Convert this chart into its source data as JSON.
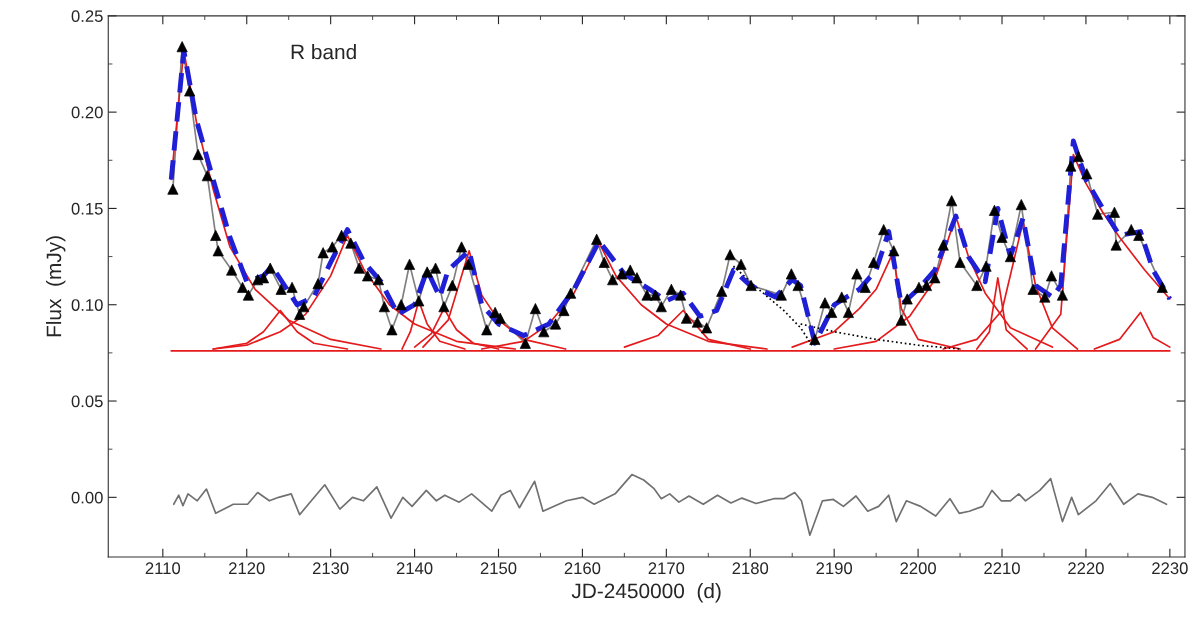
{
  "chart_data": {
    "type": "line",
    "xlabel": "JD-2450000  (d)",
    "ylabel": "Flux  (mJy)",
    "xlim": [
      2103.5,
      2231.8
    ],
    "ylim": [
      -0.031,
      0.25
    ],
    "xticks": [
      2110,
      2120,
      2130,
      2140,
      2150,
      2160,
      2170,
      2180,
      2190,
      2200,
      2210,
      2220,
      2230
    ],
    "yticks": [
      {
        "value": 0,
        "label": "0.00"
      },
      {
        "value": 0.05,
        "label": "0.05"
      },
      {
        "value": 0.1,
        "label": "0.10"
      },
      {
        "value": 0.15,
        "label": "0.15"
      },
      {
        "value": 0.2,
        "label": "0.20"
      },
      {
        "value": 0.25,
        "label": "0.25"
      }
    ],
    "grid": false,
    "legend": false,
    "annotations": [
      "R band"
    ],
    "series": [
      {
        "color": "#808080",
        "line_style": "solid",
        "x": [
          2111.2,
          2112.3,
          2113.2,
          2114.2,
          2115.3,
          2116.3,
          2116.6,
          2118.2,
          2119.5,
          2120.2,
          2121.3,
          2122.0,
          2122.8,
          2124.1,
          2125.4,
          2126.3,
          2126.8,
          2128.5,
          2129.1,
          2130.2,
          2131.3,
          2132.4,
          2133.4,
          2134.4,
          2135.7,
          2136.4,
          2137.3,
          2138.4,
          2139.4,
          2140.5,
          2141.5,
          2142.5,
          2143.5,
          2144.5,
          2145.6,
          2146.4,
          2148.6,
          2149.6,
          2150.2,
          2153.2,
          2154.4,
          2155.4,
          2156.8,
          2157.8,
          2158.6,
          2161.7,
          2162.6,
          2163.6,
          2164.7,
          2165.7,
          2166.5,
          2167.7,
          2168.7,
          2169.4,
          2170.6,
          2171.7,
          2172.4,
          2173.7,
          2174.8,
          2176.6,
          2177.6,
          2178.9,
          2180.1,
          2183.7,
          2184.9,
          2185.7,
          2187.7,
          2188.9,
          2189.7,
          2190.9,
          2191.7,
          2192.7,
          2193.7,
          2194.7,
          2195.9,
          2197.1,
          2198.0,
          2198.7,
          2200.1,
          2201.0,
          2202.0,
          2203.0,
          2204.0,
          2205.0,
          2207.0,
          2208.1,
          2209.1,
          2210.0,
          2211.0,
          2212.3,
          2213.7,
          2215.1,
          2215.9,
          2217.2,
          2218.2,
          2219.1,
          2220.1,
          2221.4,
          2223.4,
          2223.6,
          2225.4,
          2226.3,
          2229.1
        ],
        "values": [
          0.16,
          0.234,
          0.211,
          0.178,
          0.167,
          0.136,
          0.128,
          0.118,
          0.109,
          0.105,
          0.113,
          0.114,
          0.119,
          0.108,
          0.109,
          0.095,
          0.099,
          0.111,
          0.127,
          0.13,
          0.136,
          0.132,
          0.119,
          0.115,
          0.113,
          0.099,
          0.087,
          0.1,
          0.121,
          0.102,
          0.117,
          0.119,
          0.099,
          0.11,
          0.13,
          0.121,
          0.087,
          0.096,
          0.093,
          0.08,
          0.098,
          0.086,
          0.09,
          0.097,
          0.106,
          0.134,
          0.122,
          0.113,
          0.116,
          0.118,
          0.114,
          0.105,
          0.105,
          0.099,
          0.108,
          0.105,
          0.093,
          0.091,
          0.088,
          0.107,
          0.126,
          0.121,
          0.11,
          0.105,
          0.116,
          0.11,
          0.082,
          0.101,
          0.096,
          0.104,
          0.096,
          0.116,
          0.109,
          0.122,
          0.139,
          0.128,
          0.092,
          0.103,
          0.109,
          0.11,
          0.114,
          0.131,
          0.154,
          0.122,
          0.11,
          0.12,
          0.149,
          0.135,
          0.125,
          0.152,
          0.108,
          0.104,
          0.115,
          0.105,
          0.172,
          0.177,
          0.168,
          0.147,
          0.148,
          0.131,
          0.139,
          0.136,
          0.109
        ]
      },
      {
        "type": "line",
        "color": "#e41a1c",
        "line_style": "solid",
        "x": [
          2111,
          2230
        ],
        "values": [
          0.076,
          0.076
        ]
      },
      {
        "type": "line",
        "color": "#e41a1c",
        "line_style": "solid",
        "x": [
          2111,
          2112.5,
          2114,
          2116,
          2118,
          2121,
          2125,
          2130,
          2136
        ],
        "values": [
          0.165,
          0.232,
          0.195,
          0.16,
          0.13,
          0.108,
          0.092,
          0.082,
          0.077
        ]
      },
      {
        "type": "line",
        "color": "#e41a1c",
        "line_style": "solid",
        "x": [
          2116,
          2120,
          2122,
          2124,
          2126,
          2128,
          2132
        ],
        "values": [
          0.077,
          0.08,
          0.086,
          0.097,
          0.086,
          0.08,
          0.077
        ]
      },
      {
        "type": "line",
        "color": "#e41a1c",
        "line_style": "solid",
        "x": [
          2116,
          2120,
          2124,
          2127,
          2130,
          2132,
          2134,
          2137,
          2140,
          2145,
          2152
        ],
        "values": [
          0.077,
          0.079,
          0.086,
          0.095,
          0.115,
          0.136,
          0.118,
          0.1,
          0.09,
          0.081,
          0.077
        ]
      },
      {
        "type": "line",
        "color": "#e41a1c",
        "line_style": "solid",
        "x": [
          2138.5,
          2139.5,
          2140.5,
          2141.5,
          2143,
          2146
        ],
        "values": [
          0.077,
          0.086,
          0.102,
          0.09,
          0.081,
          0.077
        ]
      },
      {
        "type": "line",
        "color": "#e41a1c",
        "line_style": "solid",
        "x": [
          2140,
          2142,
          2143.5,
          2145,
          2147,
          2150
        ],
        "values": [
          0.078,
          0.085,
          0.098,
          0.087,
          0.08,
          0.077
        ]
      },
      {
        "type": "line",
        "color": "#e41a1c",
        "line_style": "solid",
        "x": [
          2141,
          2144,
          2146.5,
          2148,
          2150,
          2153,
          2158
        ],
        "values": [
          0.078,
          0.092,
          0.128,
          0.105,
          0.092,
          0.082,
          0.077
        ]
      },
      {
        "type": "line",
        "color": "#e41a1c",
        "line_style": "solid",
        "x": [
          2148,
          2153,
          2156,
          2159,
          2162,
          2164,
          2167,
          2170,
          2175,
          2182
        ],
        "values": [
          0.077,
          0.081,
          0.09,
          0.106,
          0.132,
          0.115,
          0.1,
          0.09,
          0.081,
          0.077
        ]
      },
      {
        "type": "line",
        "color": "#e41a1c",
        "line_style": "solid",
        "x": [
          2165,
          2169,
          2172,
          2175,
          2180
        ],
        "values": [
          0.078,
          0.084,
          0.097,
          0.082,
          0.077
        ]
      },
      {
        "type": "line",
        "color": "#e41a1c",
        "line_style": "solid",
        "x": [
          2185,
          2190,
          2193,
          2195,
          2197,
          2198,
          2200,
          2205
        ],
        "values": [
          0.078,
          0.086,
          0.098,
          0.108,
          0.127,
          0.098,
          0.082,
          0.077
        ]
      },
      {
        "type": "line",
        "color": "#e41a1c",
        "line_style": "solid",
        "x": [
          2190,
          2195,
          2199,
          2202,
          2204.5,
          2206,
          2208,
          2211,
          2216
        ],
        "values": [
          0.077,
          0.081,
          0.094,
          0.113,
          0.146,
          0.125,
          0.106,
          0.088,
          0.078
        ]
      },
      {
        "type": "line",
        "color": "#e41a1c",
        "line_style": "solid",
        "x": [
          2207,
          2208.5,
          2209.5,
          2210.5,
          2213
        ],
        "values": [
          0.077,
          0.086,
          0.114,
          0.087,
          0.077
        ]
      },
      {
        "type": "line",
        "color": "#e41a1c",
        "line_style": "solid",
        "x": [
          2203,
          2207,
          2210,
          2212.5,
          2214,
          2216,
          2219
        ],
        "values": [
          0.077,
          0.082,
          0.097,
          0.143,
          0.11,
          0.088,
          0.077
        ]
      },
      {
        "type": "line",
        "color": "#e41a1c",
        "line_style": "solid",
        "x": [
          2214,
          2217,
          2218.5,
          2220,
          2222,
          2224,
          2227,
          2230
        ],
        "values": [
          0.077,
          0.095,
          0.178,
          0.163,
          0.148,
          0.135,
          0.118,
          0.103
        ]
      },
      {
        "type": "line",
        "color": "#e41a1c",
        "line_style": "solid",
        "x": [
          2221,
          2224,
          2226.5,
          2228,
          2230
        ],
        "values": [
          0.077,
          0.082,
          0.096,
          0.083,
          0.078
        ]
      },
      {
        "type": "line",
        "color": "#000000",
        "line_style": "dotted",
        "x": [
          2178,
          2181,
          2184,
          2186,
          2187.5
        ],
        "values": [
          0.12,
          0.108,
          0.097,
          0.088,
          0.078
        ]
      },
      {
        "type": "line",
        "color": "#000000",
        "line_style": "dotted",
        "x": [
          2186,
          2190,
          2195,
          2200,
          2205
        ],
        "values": [
          0.09,
          0.086,
          0.082,
          0.079,
          0.077
        ]
      },
      {
        "color": "#1f1fd6",
        "line_style": "dashed",
        "x": [
          2111,
          2112.5,
          2114,
          2116,
          2118,
          2120,
          2122,
          2123,
          2126,
          2128,
          2130,
          2132,
          2134,
          2136,
          2138,
          2140,
          2141.5,
          2143,
          2144,
          2146.5,
          2148,
          2150,
          2153,
          2156,
          2159,
          2162,
          2165,
          2168,
          2170,
          2172,
          2174,
          2176,
          2178,
          2180,
          2183,
          2185,
          2186,
          2187.7,
          2190,
          2193,
          2195,
          2196.5,
          2198,
          2200,
          2202,
          2204.5,
          2206,
          2208,
          2209.5,
          2211,
          2212.5,
          2214,
          2216,
          2217,
          2218.5,
          2220,
          2222,
          2224,
          2226.5,
          2228,
          2230
        ],
        "values": [
          0.165,
          0.232,
          0.196,
          0.165,
          0.135,
          0.112,
          0.115,
          0.12,
          0.1,
          0.104,
          0.122,
          0.139,
          0.122,
          0.112,
          0.095,
          0.1,
          0.118,
          0.104,
          0.118,
          0.128,
          0.1,
          0.09,
          0.084,
          0.09,
          0.108,
          0.133,
          0.116,
          0.108,
          0.102,
          0.106,
          0.094,
          0.097,
          0.118,
          0.11,
          0.104,
          0.113,
          0.11,
          0.08,
          0.1,
          0.108,
          0.118,
          0.138,
          0.1,
          0.108,
          0.118,
          0.146,
          0.125,
          0.112,
          0.15,
          0.125,
          0.145,
          0.11,
          0.104,
          0.11,
          0.185,
          0.165,
          0.15,
          0.136,
          0.138,
          0.118,
          0.103
        ]
      },
      {
        "type": "scatter",
        "color": "#000000",
        "marker": "triangle",
        "x": [
          2111.2,
          2112.3,
          2113.2,
          2114.2,
          2115.3,
          2116.3,
          2116.6,
          2118.2,
          2119.5,
          2120.2,
          2121.3,
          2122.0,
          2122.8,
          2124.1,
          2125.4,
          2126.3,
          2126.8,
          2128.5,
          2129.1,
          2130.2,
          2131.3,
          2132.4,
          2133.4,
          2134.4,
          2135.7,
          2136.4,
          2137.3,
          2138.4,
          2139.4,
          2140.5,
          2141.5,
          2142.5,
          2143.5,
          2144.5,
          2145.6,
          2146.4,
          2148.6,
          2149.6,
          2150.2,
          2153.2,
          2154.4,
          2155.4,
          2156.8,
          2157.8,
          2158.6,
          2161.7,
          2162.6,
          2163.6,
          2164.7,
          2165.7,
          2166.5,
          2167.7,
          2168.7,
          2169.4,
          2170.6,
          2171.7,
          2172.4,
          2173.7,
          2174.8,
          2176.6,
          2177.6,
          2178.9,
          2180.1,
          2183.7,
          2184.9,
          2185.7,
          2187.7,
          2188.9,
          2189.7,
          2190.9,
          2191.7,
          2192.7,
          2193.7,
          2194.7,
          2195.9,
          2197.1,
          2198.0,
          2198.7,
          2200.1,
          2201.0,
          2202.0,
          2203.0,
          2204.0,
          2205.0,
          2207.0,
          2208.1,
          2209.1,
          2210.0,
          2211.0,
          2212.3,
          2213.7,
          2215.1,
          2215.9,
          2217.2,
          2218.2,
          2219.1,
          2220.1,
          2221.4,
          2223.4,
          2223.6,
          2225.4,
          2226.3,
          2229.1
        ],
        "values": [
          0.16,
          0.234,
          0.211,
          0.178,
          0.167,
          0.136,
          0.128,
          0.118,
          0.109,
          0.105,
          0.113,
          0.114,
          0.119,
          0.108,
          0.109,
          0.095,
          0.099,
          0.111,
          0.127,
          0.13,
          0.136,
          0.132,
          0.119,
          0.115,
          0.113,
          0.099,
          0.087,
          0.1,
          0.121,
          0.102,
          0.117,
          0.119,
          0.099,
          0.11,
          0.13,
          0.121,
          0.087,
          0.096,
          0.093,
          0.08,
          0.098,
          0.086,
          0.09,
          0.097,
          0.106,
          0.134,
          0.122,
          0.113,
          0.116,
          0.118,
          0.114,
          0.105,
          0.105,
          0.099,
          0.108,
          0.105,
          0.093,
          0.091,
          0.088,
          0.107,
          0.126,
          0.121,
          0.11,
          0.105,
          0.116,
          0.11,
          0.082,
          0.101,
          0.096,
          0.104,
          0.096,
          0.116,
          0.109,
          0.122,
          0.139,
          0.128,
          0.092,
          0.103,
          0.109,
          0.11,
          0.114,
          0.131,
          0.154,
          0.122,
          0.11,
          0.12,
          0.149,
          0.135,
          0.125,
          0.152,
          0.108,
          0.104,
          0.115,
          0.105,
          0.172,
          0.177,
          0.168,
          0.147,
          0.148,
          0.131,
          0.139,
          0.136,
          0.109
        ]
      },
      {
        "color": "#707070",
        "line_style": "solid",
        "x": [
          2111.3,
          2111.9,
          2112.4,
          2113.0,
          2114.1,
          2115.2,
          2116.3,
          2118.4,
          2120.1,
          2121.3,
          2122.7,
          2123.8,
          2125.3,
          2126.3,
          2129.3,
          2131.1,
          2132.6,
          2133.9,
          2135.5,
          2137.2,
          2138.6,
          2139.7,
          2141.4,
          2142.6,
          2143.6,
          2145.3,
          2146.8,
          2149.2,
          2150.3,
          2151.4,
          2152.5,
          2154.3,
          2155.3,
          2158.1,
          2160.0,
          2161.4,
          2162.7,
          2163.9,
          2165.9,
          2167.3,
          2168.5,
          2169.4,
          2170.4,
          2171.5,
          2172.7,
          2174.4,
          2176.1,
          2177.7,
          2179.0,
          2180.7,
          2182.8,
          2184.0,
          2185.3,
          2186.1,
          2187.1,
          2188.6,
          2189.9,
          2191.1,
          2192.6,
          2194.0,
          2195.3,
          2196.5,
          2197.4,
          2198.6,
          2200.3,
          2202.1,
          2203.8,
          2204.9,
          2206.1,
          2207.7,
          2208.8,
          2209.9,
          2211.0,
          2212.0,
          2212.8,
          2214.5,
          2215.8,
          2217.2,
          2218.3,
          2219.1,
          2221.2,
          2222.9,
          2224.5,
          2226.2,
          2227.9,
          2229.6
        ],
        "values": [
          -0.0036,
          0.0011,
          -0.0043,
          0.0018,
          -0.0018,
          0.0043,
          -0.0083,
          -0.0036,
          -0.0036,
          0.0025,
          -0.0018,
          0,
          0.0018,
          -0.009,
          0.0065,
          -0.0061,
          0,
          -0.0018,
          0.0054,
          -0.0108,
          0,
          -0.0047,
          0.0036,
          -0.0018,
          0.0011,
          -0.0025,
          0.0018,
          -0.0072,
          0.0011,
          0.0036,
          -0.0054,
          0.0083,
          -0.0072,
          -0.0018,
          0,
          -0.0036,
          -0.0007,
          0.0018,
          0.0118,
          0.009,
          0.0047,
          -0.0007,
          0.0018,
          -0.0025,
          0.0007,
          -0.0036,
          0.0011,
          -0.0029,
          -0.0004,
          -0.0032,
          -0.0007,
          -0.0007,
          0.0025,
          -0.0018,
          -0.0197,
          -0.0018,
          -0.0011,
          -0.0047,
          0.0007,
          -0.0072,
          -0.0047,
          0.0011,
          -0.0126,
          -0.0018,
          -0.0047,
          -0.0097,
          -0.0007,
          -0.0083,
          -0.0072,
          -0.0047,
          0.0036,
          -0.0018,
          -0.0018,
          0.0018,
          -0.0018,
          0.0036,
          0.0097,
          -0.0126,
          0,
          -0.009,
          -0.0018,
          0.0072,
          -0.0036,
          0.0018,
          0,
          -0.0036
        ]
      }
    ]
  }
}
